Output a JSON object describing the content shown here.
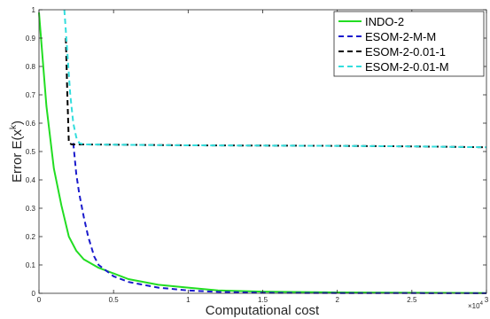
{
  "chart_data": {
    "type": "line",
    "title": "",
    "xlabel": "Computational cost",
    "ylabel": "Error E(x^k)",
    "ylabel_main": "Error E(x",
    "ylabel_sup": "k",
    "ylabel_tail": ")",
    "x_multiplier": "×10",
    "x_multiplier_exp": "4",
    "xlim": [
      0,
      3
    ],
    "ylim": [
      0,
      1
    ],
    "x_ticks": [
      "0",
      "0.5",
      "1",
      "1.5",
      "2",
      "2.5",
      "3"
    ],
    "y_ticks": [
      "0",
      "0.1",
      "0.2",
      "0.3",
      "0.4",
      "0.5",
      "0.6",
      "0.7",
      "0.8",
      "0.9",
      "1"
    ],
    "grid": false,
    "legend_position": "top-right",
    "series": [
      {
        "name": "INDO-2",
        "color": "#22dd22",
        "style": "solid",
        "x": [
          0,
          0.05,
          0.1,
          0.15,
          0.2,
          0.25,
          0.3,
          0.4,
          0.5,
          0.6,
          0.8,
          1.0,
          1.2,
          1.5,
          2.0,
          2.5,
          3.0
        ],
        "y": [
          0.99,
          0.66,
          0.44,
          0.31,
          0.2,
          0.15,
          0.12,
          0.09,
          0.07,
          0.05,
          0.03,
          0.02,
          0.01,
          0.006,
          0.003,
          0.002,
          0.001
        ]
      },
      {
        "name": "ESOM-2-M-M",
        "color": "#1a1acc",
        "style": "dashed",
        "x": [
          0.23,
          0.25,
          0.27,
          0.3,
          0.33,
          0.37,
          0.4,
          0.45,
          0.5,
          0.6,
          0.7,
          0.8,
          1.0,
          1.2,
          1.5,
          2.0,
          2.5,
          3.0
        ],
        "y": [
          0.53,
          0.42,
          0.35,
          0.27,
          0.2,
          0.13,
          0.1,
          0.08,
          0.06,
          0.04,
          0.03,
          0.02,
          0.01,
          0.005,
          0.002,
          0.001,
          0.0005,
          0.0002
        ]
      },
      {
        "name": "ESOM-2-0.01-1",
        "color": "#000000",
        "style": "dashed",
        "x": [
          0.18,
          0.19,
          0.2,
          0.22,
          0.25,
          0.3,
          1.0,
          2.0,
          2.5,
          3.0
        ],
        "y": [
          0.9,
          0.7,
          0.53,
          0.525,
          0.525,
          0.525,
          0.522,
          0.52,
          0.518,
          0.515
        ]
      },
      {
        "name": "ESOM-2-0.01-M",
        "color": "#33dddd",
        "style": "dashed",
        "x": [
          0.17,
          0.19,
          0.21,
          0.23,
          0.25,
          0.27,
          0.3,
          1.0,
          2.0,
          2.5,
          3.0
        ],
        "y": [
          1.0,
          0.85,
          0.7,
          0.6,
          0.55,
          0.53,
          0.525,
          0.522,
          0.52,
          0.518,
          0.515
        ]
      }
    ]
  }
}
